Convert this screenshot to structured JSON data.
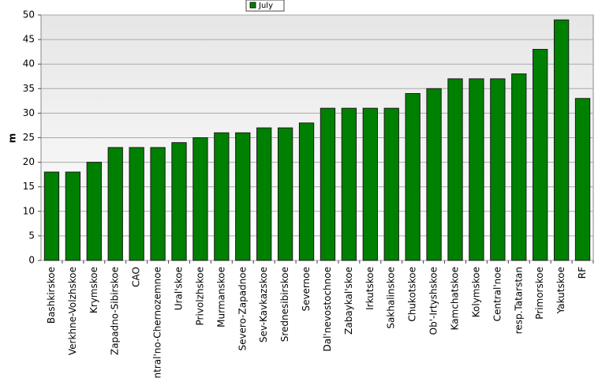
{
  "chart_data": {
    "type": "bar",
    "y_label": "m",
    "legend": "top",
    "grid": true,
    "categories": [
      "Bashkirskoe",
      "Verkhne-Volzhskoe",
      "Krymskoe",
      "Zapadno-Sibirskoe",
      "CAO",
      "Central'no-Chernozemnoe",
      "Ural'skoe",
      "Privolzhskoe",
      "Murmanskoe",
      "Severo-Zapadnoe",
      "Sev-Kavkazskoe",
      "Srednesibirskoe",
      "Severnoe",
      "Dal'nevostochnoe",
      "Zabaykal'skoe",
      "Irkutskoe",
      "Sakhalinskoe",
      "Chukotskoe",
      "Ob'-Irtyshskoe",
      "Kamchatskoe",
      "Kolymskoe",
      "Central'noe",
      "resp.Tatarstan",
      "Primorskoe",
      "Yakutskoe",
      "RF"
    ],
    "series": [
      {
        "name": "July",
        "color": "#008000",
        "values": [
          18,
          18,
          20,
          23,
          23,
          23,
          24,
          25,
          26,
          26,
          27,
          27,
          28,
          31,
          31,
          31,
          31,
          34,
          35,
          37,
          37,
          37,
          38,
          43,
          49,
          33
        ]
      }
    ],
    "ylim": [
      0,
      50
    ],
    "yticks": [
      0,
      5,
      10,
      15,
      20,
      25,
      30,
      35,
      40,
      45,
      50
    ]
  }
}
